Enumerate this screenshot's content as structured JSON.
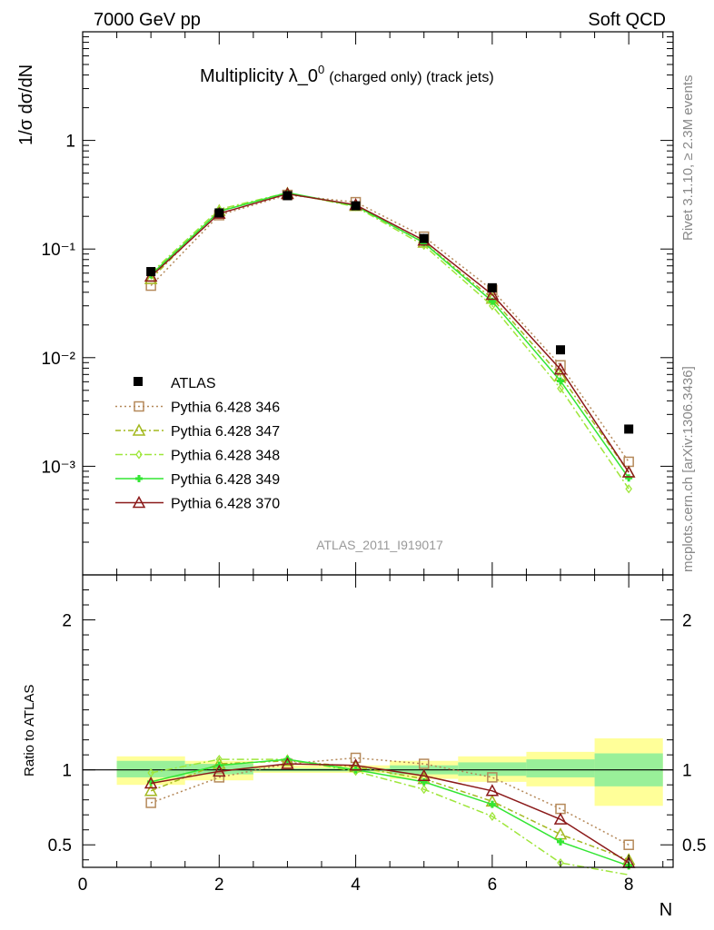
{
  "header": {
    "left": "7000 GeV pp",
    "right": "Soft QCD"
  },
  "side_text": {
    "rivet": "Rivet 3.1.10, ≥ 2.3M events",
    "mcplots": "mcplots.cern.ch [arXiv:1306.3436]"
  },
  "chart_data": [
    {
      "type": "line",
      "title_main": "Multiplicity λ_0",
      "title_sup": "0",
      "title_small": "(charged only) (track jets)",
      "ylabel": "1/σ dσ/dN",
      "yscale": "log",
      "ylim": [
        0.0001,
        10
      ],
      "xlim": [
        0,
        8.65
      ],
      "watermark": "ATLAS_2011_I919017",
      "legend_position": "middle-left",
      "y_tick_labels": [
        "10⁻³",
        "10⁻²",
        "10⁻¹",
        "1"
      ],
      "x": [
        1,
        2,
        3,
        4,
        5,
        6,
        7,
        8
      ],
      "data": {
        "name": "ATLAS",
        "values": [
          0.062,
          0.215,
          0.31,
          0.25,
          0.125,
          0.044,
          0.0118,
          0.0022
        ]
      },
      "series": [
        {
          "name": "Pythia 6.428 346",
          "color": "#b5895a",
          "dash": "2,3",
          "marker": "square",
          "values": [
            0.046,
            0.205,
            0.315,
            0.27,
            0.13,
            0.042,
            0.0085,
            0.0011
          ]
        },
        {
          "name": "Pythia 6.428 347",
          "color": "#a3b81f",
          "dash": "6,3,2,3",
          "marker": "triangle",
          "values": [
            0.053,
            0.225,
            0.325,
            0.25,
            0.115,
            0.035,
            0.0068,
            0.00088
          ]
        },
        {
          "name": "Pythia 6.428 348",
          "color": "#9ee63a",
          "dash": "8,3,2,3",
          "marker": "diamond",
          "values": [
            0.06,
            0.232,
            0.33,
            0.245,
            0.108,
            0.03,
            0.0052,
            0.00062
          ]
        },
        {
          "name": "Pythia 6.428 349",
          "color": "#33e633",
          "dash": "",
          "marker": "cross",
          "values": [
            0.058,
            0.222,
            0.33,
            0.25,
            0.114,
            0.033,
            0.0061,
            0.00078
          ]
        },
        {
          "name": "Pythia 6.428 370",
          "color": "#8b1a1a",
          "dash": "",
          "marker": "triangle",
          "values": [
            0.056,
            0.212,
            0.322,
            0.255,
            0.12,
            0.038,
            0.0078,
            0.00088
          ]
        }
      ]
    },
    {
      "type": "line",
      "ylabel": "Ratio to ATLAS",
      "xlabel": "N",
      "ylim": [
        0.35,
        2.3
      ],
      "xlim": [
        0,
        8.65
      ],
      "y_tick_labels": [
        "0.5",
        "1",
        "2"
      ],
      "x_tick_labels": [
        "0",
        "2",
        "4",
        "6",
        "8"
      ],
      "bands": {
        "x_edges": [
          0.5,
          1.5,
          2.5,
          3.5,
          4.5,
          5.5,
          6.5,
          7.5,
          8.5
        ],
        "yellow_low": [
          0.9,
          0.93,
          0.98,
          0.98,
          0.94,
          0.92,
          0.89,
          0.76
        ],
        "yellow_high": [
          1.09,
          1.06,
          1.03,
          1.03,
          1.06,
          1.09,
          1.12,
          1.21
        ],
        "green_low": [
          0.95,
          0.97,
          0.99,
          0.99,
          0.97,
          0.96,
          0.95,
          0.89
        ],
        "green_high": [
          1.06,
          1.04,
          1.01,
          1.01,
          1.03,
          1.05,
          1.07,
          1.11
        ]
      },
      "series": [
        {
          "name": "Pythia 6.428 346",
          "values": [
            0.78,
            0.95,
            1.04,
            1.08,
            1.04,
            0.95,
            0.74,
            0.5
          ]
        },
        {
          "name": "Pythia 6.428 347",
          "values": [
            0.86,
            1.04,
            1.06,
            1.02,
            0.94,
            0.79,
            0.57,
            0.4
          ]
        },
        {
          "name": "Pythia 6.428 348",
          "values": [
            0.98,
            1.07,
            1.07,
            0.99,
            0.87,
            0.69,
            0.38,
            0.28
          ]
        },
        {
          "name": "Pythia 6.428 349",
          "values": [
            0.92,
            1.03,
            1.07,
            1.0,
            0.92,
            0.77,
            0.52,
            0.36
          ]
        },
        {
          "name": "Pythia 6.428 370",
          "values": [
            0.91,
            0.99,
            1.04,
            1.03,
            0.96,
            0.86,
            0.67,
            0.38
          ]
        }
      ]
    }
  ]
}
